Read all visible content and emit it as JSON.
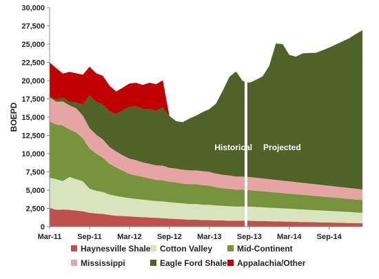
{
  "chart_data": {
    "type": "area",
    "ylabel": "BOEPD",
    "ylim": [
      0,
      30000
    ],
    "y_ticks": [
      0,
      2500,
      5000,
      7500,
      10000,
      12500,
      15000,
      17500,
      20000,
      22500,
      25000,
      27500,
      30000
    ],
    "y_tick_labels": [
      "0",
      "2,500",
      "5,000",
      "7,500",
      "10,000",
      "12,500",
      "15,000",
      "17,500",
      "20,000",
      "22,500",
      "25,000",
      "27,500",
      "30,000"
    ],
    "x_ticks": [
      "Mar-11",
      "Sep-11",
      "Mar-12",
      "Sep-12",
      "Mar-13",
      "Sep-13",
      "Mar-14",
      "Sep-14"
    ],
    "x_tick_positions": [
      0,
      6,
      12,
      18,
      24,
      30,
      36,
      42
    ],
    "x_range": [
      0,
      47
    ],
    "annotations": {
      "historical": "Historical",
      "projected": "Projected"
    },
    "divider_at": 29.5,
    "legend_position": "bottom",
    "series": [
      {
        "name": "Haynesville Shale",
        "color": "#c0504d",
        "points": [
          [
            0,
            2600
          ],
          [
            1,
            2300
          ],
          [
            2,
            2350
          ],
          [
            3,
            2300
          ],
          [
            4,
            2200
          ],
          [
            5,
            2100
          ],
          [
            6,
            1900
          ],
          [
            7,
            1800
          ],
          [
            8,
            1750
          ],
          [
            9,
            1600
          ],
          [
            10,
            1500
          ],
          [
            11,
            1450
          ],
          [
            12,
            1400
          ],
          [
            13,
            1350
          ],
          [
            14,
            1300
          ],
          [
            15,
            1250
          ],
          [
            16,
            1200
          ],
          [
            17,
            1150
          ],
          [
            18,
            1100
          ],
          [
            19,
            1050
          ],
          [
            20,
            1000
          ],
          [
            21,
            950
          ],
          [
            22,
            950
          ],
          [
            23,
            900
          ],
          [
            24,
            900
          ],
          [
            25,
            850
          ],
          [
            26,
            850
          ],
          [
            27,
            800
          ],
          [
            28,
            800
          ],
          [
            29,
            800
          ],
          [
            30,
            800
          ],
          [
            31,
            780
          ],
          [
            32,
            760
          ],
          [
            33,
            740
          ],
          [
            34,
            720
          ],
          [
            35,
            700
          ],
          [
            36,
            680
          ],
          [
            37,
            660
          ],
          [
            38,
            640
          ],
          [
            39,
            620
          ],
          [
            40,
            600
          ],
          [
            41,
            580
          ],
          [
            42,
            560
          ],
          [
            43,
            540
          ],
          [
            44,
            520
          ],
          [
            45,
            500
          ],
          [
            46,
            480
          ],
          [
            47,
            460
          ]
        ]
      },
      {
        "name": "Cotton Valley",
        "color": "#d7e4bd",
        "points": [
          [
            0,
            4100
          ],
          [
            1,
            4200
          ],
          [
            2,
            3900
          ],
          [
            3,
            4500
          ],
          [
            4,
            4300
          ],
          [
            5,
            4100
          ],
          [
            6,
            3300
          ],
          [
            7,
            3100
          ],
          [
            8,
            3000
          ],
          [
            9,
            2800
          ],
          [
            10,
            2700
          ],
          [
            11,
            2600
          ],
          [
            12,
            2500
          ],
          [
            13,
            2450
          ],
          [
            14,
            2400
          ],
          [
            15,
            2350
          ],
          [
            16,
            2300
          ],
          [
            17,
            2300
          ],
          [
            18,
            2250
          ],
          [
            19,
            2200
          ],
          [
            20,
            2200
          ],
          [
            21,
            2150
          ],
          [
            22,
            2150
          ],
          [
            23,
            2100
          ],
          [
            24,
            2100
          ],
          [
            25,
            2050
          ],
          [
            26,
            2000
          ],
          [
            27,
            2000
          ],
          [
            28,
            1950
          ],
          [
            29,
            1950
          ],
          [
            30,
            1950
          ],
          [
            31,
            1920
          ],
          [
            32,
            1890
          ],
          [
            33,
            1860
          ],
          [
            34,
            1830
          ],
          [
            35,
            1800
          ],
          [
            36,
            1770
          ],
          [
            37,
            1740
          ],
          [
            38,
            1710
          ],
          [
            39,
            1680
          ],
          [
            40,
            1650
          ],
          [
            41,
            1620
          ],
          [
            42,
            1590
          ],
          [
            43,
            1560
          ],
          [
            44,
            1530
          ],
          [
            45,
            1500
          ],
          [
            46,
            1470
          ],
          [
            47,
            1440
          ]
        ]
      },
      {
        "name": "Mid-Continent",
        "color": "#77933c",
        "points": [
          [
            0,
            7700
          ],
          [
            1,
            7500
          ],
          [
            2,
            7600
          ],
          [
            3,
            6500
          ],
          [
            4,
            6400
          ],
          [
            5,
            5900
          ],
          [
            6,
            5500
          ],
          [
            7,
            5100
          ],
          [
            8,
            4700
          ],
          [
            9,
            4200
          ],
          [
            10,
            3900
          ],
          [
            11,
            3600
          ],
          [
            12,
            3300
          ],
          [
            13,
            3200
          ],
          [
            14,
            3100
          ],
          [
            15,
            3000
          ],
          [
            16,
            2900
          ],
          [
            17,
            2900
          ],
          [
            18,
            2800
          ],
          [
            19,
            2800
          ],
          [
            20,
            2700
          ],
          [
            21,
            2700
          ],
          [
            22,
            2700
          ],
          [
            23,
            2700
          ],
          [
            24,
            2600
          ],
          [
            25,
            2500
          ],
          [
            26,
            2400
          ],
          [
            27,
            2400
          ],
          [
            28,
            2300
          ],
          [
            29,
            2300
          ],
          [
            30,
            2250
          ],
          [
            31,
            2220
          ],
          [
            32,
            2190
          ],
          [
            33,
            2160
          ],
          [
            34,
            2130
          ],
          [
            35,
            2100
          ],
          [
            36,
            2070
          ],
          [
            37,
            2040
          ],
          [
            38,
            2010
          ],
          [
            39,
            1980
          ],
          [
            40,
            1950
          ],
          [
            41,
            1920
          ],
          [
            42,
            1890
          ],
          [
            43,
            1860
          ],
          [
            44,
            1830
          ],
          [
            45,
            1800
          ],
          [
            46,
            1770
          ],
          [
            47,
            1740
          ]
        ]
      },
      {
        "name": "Mississippi",
        "color": "#e6a5a4",
        "points": [
          [
            0,
            3300
          ],
          [
            1,
            3100
          ],
          [
            2,
            3300
          ],
          [
            3,
            3300
          ],
          [
            4,
            3300
          ],
          [
            5,
            3100
          ],
          [
            6,
            2800
          ],
          [
            7,
            2600
          ],
          [
            8,
            2500
          ],
          [
            9,
            2300
          ],
          [
            10,
            2200
          ],
          [
            11,
            2100
          ],
          [
            12,
            2100
          ],
          [
            13,
            2100
          ],
          [
            14,
            2000
          ],
          [
            15,
            2000
          ],
          [
            16,
            2000
          ],
          [
            17,
            2000
          ],
          [
            18,
            1900
          ],
          [
            19,
            1900
          ],
          [
            20,
            1900
          ],
          [
            21,
            1900
          ],
          [
            22,
            1900
          ],
          [
            23,
            1900
          ],
          [
            24,
            1900
          ],
          [
            25,
            1850
          ],
          [
            26,
            1850
          ],
          [
            27,
            1800
          ],
          [
            28,
            1800
          ],
          [
            29,
            1800
          ],
          [
            30,
            1800
          ],
          [
            31,
            1780
          ],
          [
            32,
            1760
          ],
          [
            33,
            1740
          ],
          [
            34,
            1720
          ],
          [
            35,
            1700
          ],
          [
            36,
            1680
          ],
          [
            37,
            1660
          ],
          [
            38,
            1640
          ],
          [
            39,
            1620
          ],
          [
            40,
            1600
          ],
          [
            41,
            1580
          ],
          [
            42,
            1560
          ],
          [
            43,
            1540
          ],
          [
            44,
            1520
          ],
          [
            45,
            1500
          ],
          [
            46,
            1480
          ],
          [
            47,
            1460
          ]
        ]
      },
      {
        "name": "Eagle Ford Shale",
        "color": "#4f6228",
        "points": [
          [
            0,
            100
          ],
          [
            1,
            300
          ],
          [
            2,
            500
          ],
          [
            3,
            500
          ],
          [
            4,
            800
          ],
          [
            5,
            1500
          ],
          [
            6,
            4500
          ],
          [
            7,
            4500
          ],
          [
            8,
            4800
          ],
          [
            9,
            4900
          ],
          [
            10,
            5100
          ],
          [
            11,
            6200
          ],
          [
            12,
            7100
          ],
          [
            13,
            7400
          ],
          [
            14,
            7300
          ],
          [
            15,
            7500
          ],
          [
            16,
            7500
          ],
          [
            17,
            8000
          ],
          [
            18,
            7100
          ],
          [
            19,
            6500
          ],
          [
            20,
            6500
          ],
          [
            21,
            7100
          ],
          [
            22,
            7500
          ],
          [
            23,
            8100
          ],
          [
            24,
            8600
          ],
          [
            25,
            9600
          ],
          [
            26,
            11500
          ],
          [
            27,
            13500
          ],
          [
            28,
            14400
          ],
          [
            29,
            13100
          ],
          [
            30,
            12900
          ],
          [
            31,
            13400
          ],
          [
            32,
            13980
          ],
          [
            33,
            15540
          ],
          [
            34,
            18680
          ],
          [
            35,
            18700
          ],
          [
            36,
            17330
          ],
          [
            37,
            17180
          ],
          [
            38,
            17730
          ],
          [
            39,
            17880
          ],
          [
            40,
            18000
          ],
          [
            41,
            18450
          ],
          [
            42,
            18920
          ],
          [
            43,
            19440
          ],
          [
            44,
            19960
          ],
          [
            45,
            20490
          ],
          [
            46,
            21180
          ],
          [
            47,
            21800
          ]
        ]
      },
      {
        "name": "Appalachia/Other",
        "color": "#c00000",
        "points": [
          [
            0,
            4700
          ],
          [
            1,
            4300
          ],
          [
            2,
            3300
          ],
          [
            3,
            4100
          ],
          [
            4,
            4000
          ],
          [
            5,
            4100
          ],
          [
            6,
            3900
          ],
          [
            7,
            3900
          ],
          [
            8,
            3900
          ],
          [
            9,
            3500
          ],
          [
            10,
            3100
          ],
          [
            11,
            3100
          ],
          [
            12,
            3200
          ],
          [
            13,
            3200
          ],
          [
            14,
            3300
          ],
          [
            15,
            3600
          ],
          [
            16,
            3600
          ],
          [
            17,
            3700
          ],
          [
            18,
            0
          ],
          [
            19,
            0
          ],
          [
            20,
            0
          ],
          [
            21,
            0
          ],
          [
            22,
            0
          ],
          [
            23,
            0
          ],
          [
            24,
            0
          ],
          [
            25,
            0
          ],
          [
            26,
            0
          ],
          [
            27,
            0
          ],
          [
            28,
            0
          ],
          [
            29,
            0
          ],
          [
            30,
            0
          ],
          [
            31,
            0
          ],
          [
            32,
            0
          ],
          [
            33,
            0
          ],
          [
            34,
            0
          ],
          [
            35,
            0
          ],
          [
            36,
            0
          ],
          [
            37,
            0
          ],
          [
            38,
            0
          ],
          [
            39,
            0
          ],
          [
            40,
            0
          ],
          [
            41,
            0
          ],
          [
            42,
            0
          ],
          [
            43,
            0
          ],
          [
            44,
            0
          ],
          [
            45,
            0
          ],
          [
            46,
            0
          ],
          [
            47,
            0
          ]
        ]
      }
    ]
  }
}
